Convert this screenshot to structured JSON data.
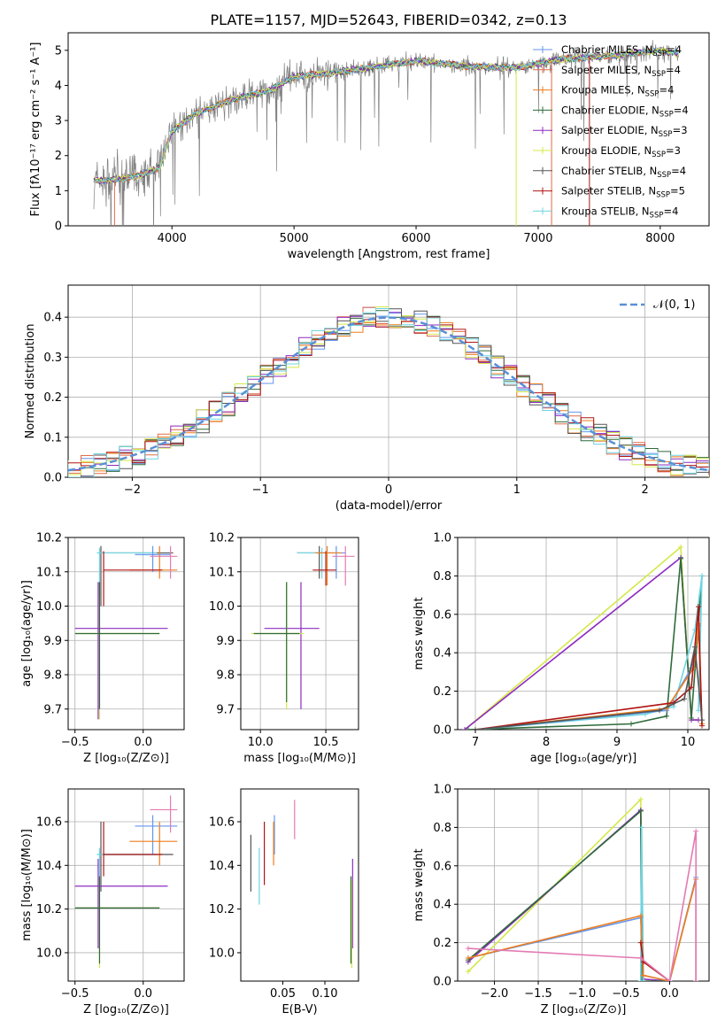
{
  "colors": {
    "Chabrier MILES": "#6495ed",
    "Salpeter MILES": "#e06c4a",
    "Kroupa MILES": "#ee7d1c",
    "Chabrier ELODIE": "#2e6b3a",
    "Salpeter ELODIE": "#8e2bc0",
    "Kroupa ELODIE": "#d4e84a",
    "Chabrier STELIB": "#555555",
    "Salpeter STELIB": "#b01515",
    "Kroupa STELIB": "#6fd4e0",
    "pink": "#e37bb3",
    "gauss": "#5a8fd6"
  },
  "chart_data": [
    {
      "id": "spectrum",
      "type": "line",
      "title": "PLATE=1157, MJD=52643, FIBERID=0342, z=0.13",
      "xlabel": "wavelength [Angstrom, rest frame]",
      "ylabel": "Flux [fλ10⁻¹⁷ erg cm⁻² s⁻¹ A⁻¹]",
      "xlim": [
        3150,
        8400
      ],
      "ylim": [
        0,
        5.5
      ],
      "xticks": [
        "4000",
        "5000",
        "6000",
        "7000",
        "8000"
      ],
      "yticks": [
        "0",
        "1",
        "2",
        "3",
        "4",
        "5"
      ],
      "legend_position": "top-right",
      "legend": [
        {
          "name": "Chabrier MILES",
          "nssp": "4"
        },
        {
          "name": "Salpeter MILES",
          "nssp": "4"
        },
        {
          "name": "Kroupa MILES",
          "nssp": "4"
        },
        {
          "name": "Chabrier ELODIE",
          "nssp": "4"
        },
        {
          "name": "Salpeter ELODIE",
          "nssp": "3"
        },
        {
          "name": "Kroupa ELODIE",
          "nssp": "3"
        },
        {
          "name": "Chabrier STELIB",
          "nssp": "4"
        },
        {
          "name": "Salpeter STELIB",
          "nssp": "5"
        },
        {
          "name": "Kroupa STELIB",
          "nssp": "4"
        }
      ],
      "continuum_nodes": [
        [
          3360,
          1.3
        ],
        [
          3500,
          1.3
        ],
        [
          3700,
          1.4
        ],
        [
          3900,
          1.65
        ],
        [
          4000,
          2.7
        ],
        [
          4200,
          3.2
        ],
        [
          4500,
          3.6
        ],
        [
          4800,
          3.85
        ],
        [
          5000,
          4.25
        ],
        [
          5300,
          4.35
        ],
        [
          5600,
          4.5
        ],
        [
          6000,
          4.7
        ],
        [
          6400,
          4.55
        ],
        [
          6800,
          4.5
        ],
        [
          7200,
          4.75
        ],
        [
          7600,
          4.85
        ],
        [
          8000,
          5.0
        ],
        [
          8150,
          4.9
        ]
      ]
    },
    {
      "id": "residuals",
      "type": "bar",
      "xlabel": "(data-model)/error",
      "ylabel": "Normed distribution",
      "xlim": [
        -2.5,
        2.5
      ],
      "ylim": [
        0,
        0.48
      ],
      "xticks": [
        "−2",
        "−1",
        "0",
        "1",
        "2"
      ],
      "yticks": [
        "0.0",
        "0.1",
        "0.2",
        "0.3",
        "0.4"
      ],
      "gauss_label": "𝒩(0, 1)",
      "legend_position": "top-right"
    },
    {
      "id": "age-vs-Z",
      "type": "scatter",
      "xlabel": "Z [log₁₀(Z/Z⊙)]",
      "ylabel": "age  [log₁₀(age/yr)]",
      "xlim": [
        -0.55,
        0.3
      ],
      "ylim": [
        9.64,
        10.2
      ],
      "xticks": [
        "−0.5",
        "0.0"
      ],
      "yticks": [
        "9.7",
        "9.8",
        "9.9",
        "10.0",
        "10.1",
        "10.2"
      ]
    },
    {
      "id": "age-vs-mass",
      "type": "scatter",
      "xlabel": "mass [log₁₀(M/M⊙)]",
      "xlim": [
        9.85,
        10.75
      ],
      "ylim": [
        9.64,
        10.2
      ],
      "xticks": [
        "10.0",
        "10.5"
      ],
      "yticks": [
        "9.7",
        "9.8",
        "9.9",
        "10.0",
        "10.1",
        "10.2"
      ]
    },
    {
      "id": "weight-vs-age",
      "type": "line",
      "xlabel": "age  [log₁₀(age/yr)]",
      "ylabel": "mass weight",
      "xlim": [
        6.75,
        10.3
      ],
      "ylim": [
        0,
        1.0
      ],
      "xticks": [
        "7",
        "8",
        "9",
        "10"
      ],
      "yticks": [
        "0.0",
        "0.2",
        "0.4",
        "0.6",
        "0.8",
        "1.0"
      ]
    },
    {
      "id": "mass-vs-Z",
      "type": "scatter",
      "xlabel": "Z [log₁₀(Z/Z⊙)]",
      "ylabel": "mass [log₁₀(M/M⊙)]",
      "xlim": [
        -0.55,
        0.3
      ],
      "ylim": [
        9.87,
        10.75
      ],
      "xticks": [
        "−0.5",
        "0.0"
      ],
      "yticks": [
        "10.0",
        "10.2",
        "10.4",
        "10.6"
      ]
    },
    {
      "id": "mass-vs-ebv",
      "type": "scatter",
      "xlabel": "E(B-V)",
      "xlim": [
        0.0,
        0.14
      ],
      "ylim": [
        9.87,
        10.75
      ],
      "xticks": [
        "0.05",
        "0.10"
      ],
      "yticks": [
        "10.0",
        "10.2",
        "10.4",
        "10.6"
      ]
    },
    {
      "id": "weight-vs-Z",
      "type": "line",
      "xlabel": "Z [log₁₀(Z/Z⊙)]",
      "ylabel": "mass weight",
      "xlim": [
        -2.42,
        0.45
      ],
      "ylim": [
        0,
        1.0
      ],
      "xticks": [
        "−2.0",
        "−1.5",
        "−1.0",
        "−0.5",
        "0.0"
      ],
      "yticks": [
        "0.0",
        "0.2",
        "0.4",
        "0.6",
        "0.8",
        "1.0"
      ]
    }
  ]
}
